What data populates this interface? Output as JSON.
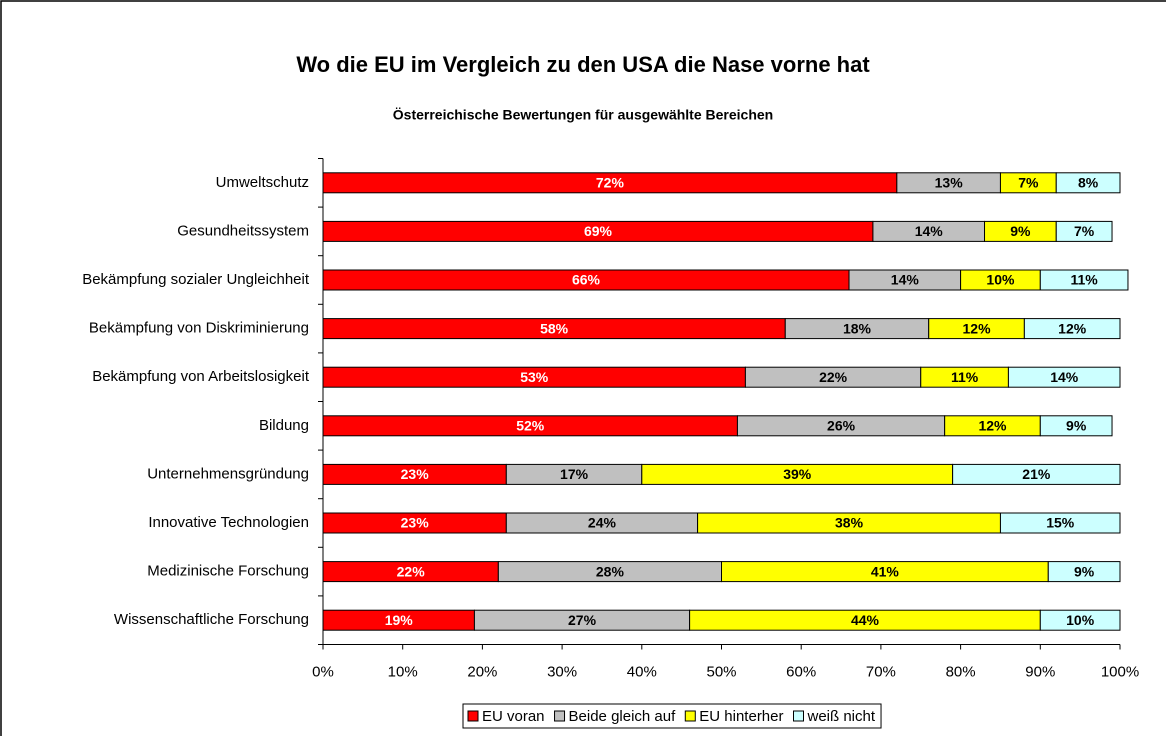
{
  "chart_data": {
    "type": "stacked-barh",
    "title": "Wo die EU im Vergleich zu den USA die Nase vorne hat",
    "subtitle": "Österreichische Bewertungen für ausgewählte Bereichen",
    "categories": [
      "Umweltschutz",
      "Gesundheitssystem",
      "Bekämpfung sozialer Ungleichheit",
      "Bekämpfung von Diskriminierung",
      "Bekämpfung von Arbeitslosigkeit",
      "Bildung",
      "Unternehmensgründung",
      "Innovative Technologien",
      "Medizinische Forschung",
      "Wissenschaftliche Forschung"
    ],
    "series": [
      {
        "name": "EU voran",
        "color": "#ff0000",
        "label_color": "#ffffff",
        "values": [
          72,
          69,
          66,
          58,
          53,
          52,
          23,
          23,
          22,
          19
        ],
        "value_labels": [
          "72%",
          "69%",
          "66%",
          "58%",
          "53%",
          "52%",
          "23%",
          "23%",
          "22%",
          "19%"
        ]
      },
      {
        "name": "Beide gleich auf",
        "color": "#c0c0c0",
        "label_color": "#000000",
        "values": [
          13,
          14,
          14,
          18,
          22,
          26,
          17,
          24,
          28,
          27
        ],
        "value_labels": [
          "13%",
          "14%",
          "14%",
          "18%",
          "22%",
          "26%",
          "17%",
          "24%",
          "28%",
          "27%"
        ]
      },
      {
        "name": "EU hinterher",
        "color": "#ffff00",
        "label_color": "#000000",
        "values": [
          7,
          9,
          10,
          12,
          11,
          12,
          39,
          38,
          41,
          44
        ],
        "value_labels": [
          "7%",
          "9%",
          "10%",
          "12%",
          "11%",
          "12%",
          "39%",
          "38%",
          "41%",
          "44%"
        ]
      },
      {
        "name": "weiß nicht",
        "color": "#ccffff",
        "label_color": "#000000",
        "values": [
          8,
          7,
          11,
          12,
          14,
          9,
          21,
          15,
          9,
          10
        ],
        "value_labels": [
          "8%",
          "7%",
          "11%",
          "12%",
          "14%",
          "9%",
          "21%",
          "15%",
          "9%",
          "10%"
        ]
      }
    ],
    "xlim": [
      0,
      100
    ],
    "xticks": [
      {
        "value": 0,
        "label": "0%"
      },
      {
        "value": 10,
        "label": "10%"
      },
      {
        "value": 20,
        "label": "20%"
      },
      {
        "value": 30,
        "label": "30%"
      },
      {
        "value": 40,
        "label": "40%"
      },
      {
        "value": 50,
        "label": "50%"
      },
      {
        "value": 60,
        "label": "60%"
      },
      {
        "value": 70,
        "label": "70%"
      },
      {
        "value": 80,
        "label": "80%"
      },
      {
        "value": 90,
        "label": "90%"
      },
      {
        "value": 100,
        "label": "100%"
      }
    ],
    "legend": "bottom"
  }
}
